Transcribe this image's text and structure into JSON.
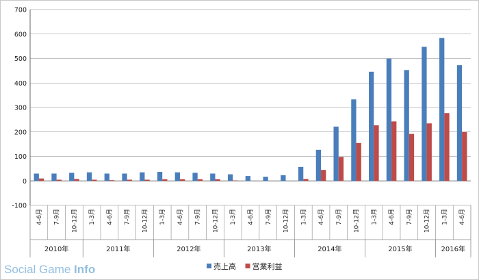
{
  "chart_data": {
    "type": "bar",
    "ylim": [
      -100,
      700
    ],
    "yticks": [
      700,
      600,
      500,
      400,
      300,
      200,
      100,
      0,
      -100
    ],
    "grid": true,
    "legend_position": "bottom",
    "categories": [
      "4-6月",
      "7-9月",
      "10-12月",
      "1-3月",
      "4-6月",
      "7-9月",
      "10-12月",
      "1-3月",
      "4-6月",
      "7-9月",
      "10-12月",
      "1-3月",
      "4-6月",
      "7-9月",
      "10-12月",
      "1-3月",
      "4-6月",
      "7-9月",
      "10-12月",
      "1-3月",
      "4-6月",
      "7-9月",
      "10-12月",
      "1-3月",
      "4-6月"
    ],
    "groups": [
      {
        "label": "2010年",
        "count": 3
      },
      {
        "label": "2011年",
        "count": 4
      },
      {
        "label": "2012年",
        "count": 4
      },
      {
        "label": "2013年",
        "count": 4
      },
      {
        "label": "2014年",
        "count": 4
      },
      {
        "label": "2015年",
        "count": 4
      },
      {
        "label": "2016年",
        "count": 2
      }
    ],
    "series": [
      {
        "name": "売上高",
        "color": "#4a7ebb",
        "values": [
          30,
          30,
          33,
          35,
          30,
          30,
          35,
          37,
          35,
          33,
          30,
          27,
          20,
          17,
          23,
          57,
          127,
          222,
          333,
          446,
          500,
          453,
          548,
          584,
          473
        ]
      },
      {
        "name": "営業利益",
        "color": "#be4b48",
        "values": [
          10,
          5,
          8,
          5,
          3,
          5,
          5,
          7,
          7,
          7,
          7,
          2,
          0,
          0,
          0,
          8,
          45,
          98,
          155,
          227,
          243,
          192,
          235,
          277,
          200
        ]
      }
    ]
  },
  "watermark": {
    "brand": "Social Game ",
    "bold": "Info"
  }
}
